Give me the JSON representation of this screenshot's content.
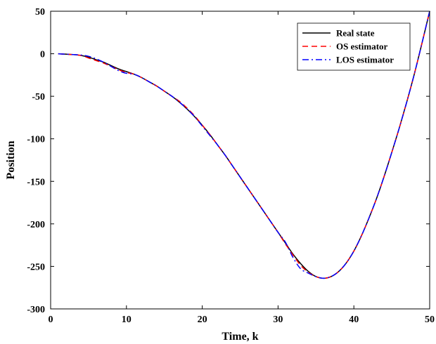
{
  "chart_data": {
    "type": "line",
    "title": "",
    "xlabel": "Time, k",
    "ylabel": "Position",
    "xlim": [
      0,
      50
    ],
    "ylim": [
      -300,
      50
    ],
    "xticks": [
      0,
      10,
      20,
      30,
      40,
      50
    ],
    "yticks": [
      50,
      0,
      -50,
      -100,
      -150,
      -200,
      -250,
      -300
    ],
    "xtick_labels": [
      "0",
      "10",
      "20",
      "30",
      "40",
      "50"
    ],
    "ytick_labels": [
      "50",
      "0",
      "-50",
      "-100",
      "-150",
      "-200",
      "-250",
      "-300"
    ],
    "grid": false,
    "legend_position": "top-right",
    "x": [
      1,
      2,
      3,
      4,
      5,
      6,
      7,
      8,
      9,
      10,
      11,
      12,
      13,
      14,
      15,
      16,
      17,
      18,
      19,
      20,
      21,
      22,
      23,
      24,
      25,
      26,
      27,
      28,
      29,
      30,
      31,
      32,
      33,
      34,
      35,
      36,
      37,
      38,
      39,
      40,
      41,
      42,
      43,
      44,
      45,
      46,
      47,
      48,
      49,
      50
    ],
    "series": [
      {
        "name": "Real state",
        "color": "#000000",
        "dash": "solid",
        "values": [
          0,
          -0.5,
          -1,
          -2,
          -4,
          -7,
          -10,
          -14,
          -18,
          -21,
          -24,
          -28,
          -33,
          -38,
          -44,
          -50,
          -57,
          -65,
          -74,
          -84,
          -95,
          -107,
          -119,
          -132,
          -145,
          -158,
          -171,
          -184,
          -197,
          -210,
          -223,
          -236,
          -247,
          -256,
          -262,
          -264,
          -262,
          -256,
          -246,
          -232,
          -214,
          -193,
          -170,
          -144,
          -116,
          -87,
          -56,
          -23,
          13,
          50
        ]
      },
      {
        "name": "OS estimator",
        "color": "#ff0000",
        "dash": "dashed",
        "values": [
          0,
          -0.5,
          -1,
          -2,
          -5,
          -8,
          -11,
          -15,
          -19,
          -22,
          -24,
          -28,
          -33,
          -38,
          -44,
          -50,
          -56,
          -64,
          -73,
          -84,
          -95,
          -107,
          -119,
          -132,
          -145,
          -158,
          -171,
          -184,
          -197,
          -210,
          -224,
          -237,
          -249,
          -257,
          -262,
          -264,
          -262,
          -256,
          -246,
          -232,
          -214,
          -193,
          -170,
          -144,
          -116,
          -87,
          -56,
          -23,
          13,
          50
        ]
      },
      {
        "name": "LOS estimator",
        "color": "#0000ff",
        "dash": "dashdot",
        "values": [
          0,
          -0.5,
          -1,
          -1.5,
          -3,
          -6,
          -10,
          -15,
          -20,
          -23,
          -24,
          -28,
          -33,
          -38,
          -44,
          -50,
          -57,
          -65,
          -74,
          -85,
          -96,
          -107,
          -119,
          -132,
          -145,
          -158,
          -171,
          -184,
          -197,
          -210,
          -222,
          -240,
          -253,
          -258,
          -262,
          -264,
          -262,
          -256,
          -246,
          -232,
          -214,
          -193,
          -170,
          -144,
          -116,
          -87,
          -56,
          -23,
          13,
          50
        ]
      }
    ]
  }
}
